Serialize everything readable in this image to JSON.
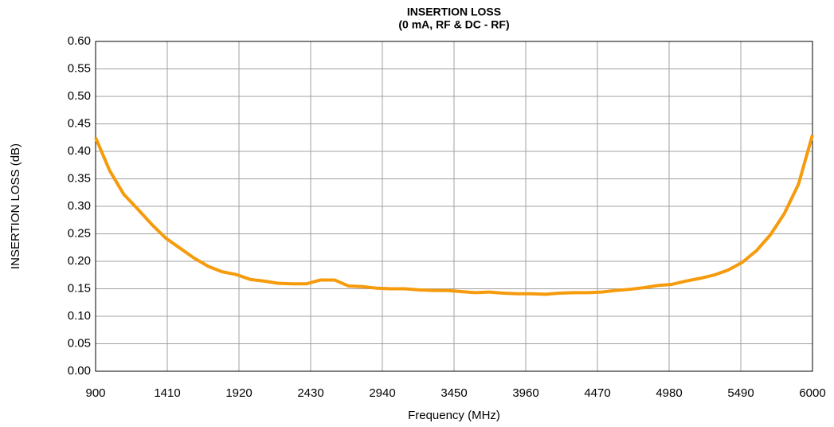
{
  "chart_data": {
    "type": "line",
    "title": "INSERTION LOSS",
    "subtitle": "(0 mA, RF & DC - RF)",
    "x_label": "Frequency (MHz)",
    "y_label": "INSERTION LOSS (dB)",
    "x": [
      900,
      1000,
      1100,
      1200,
      1300,
      1400,
      1500,
      1600,
      1700,
      1800,
      1900,
      2000,
      2100,
      2200,
      2300,
      2400,
      2500,
      2600,
      2700,
      2800,
      2900,
      3000,
      3100,
      3200,
      3300,
      3400,
      3500,
      3600,
      3700,
      3800,
      3900,
      4000,
      4100,
      4200,
      4300,
      4400,
      4500,
      4600,
      4700,
      4800,
      4900,
      5000,
      5100,
      5200,
      5300,
      5400,
      5500,
      5600,
      5700,
      5800,
      5900,
      6000
    ],
    "series": [
      {
        "name": "Insertion Loss",
        "color": "#f59b0c",
        "values": [
          0.425,
          0.365,
          0.322,
          0.295,
          0.267,
          0.242,
          0.224,
          0.206,
          0.191,
          0.181,
          0.176,
          0.167,
          0.164,
          0.16,
          0.159,
          0.159,
          0.166,
          0.166,
          0.155,
          0.154,
          0.151,
          0.15,
          0.15,
          0.148,
          0.147,
          0.147,
          0.145,
          0.143,
          0.144,
          0.142,
          0.141,
          0.141,
          0.14,
          0.142,
          0.143,
          0.143,
          0.144,
          0.147,
          0.149,
          0.152,
          0.156,
          0.158,
          0.164,
          0.169,
          0.175,
          0.184,
          0.198,
          0.219,
          0.248,
          0.287,
          0.34,
          0.43
        ]
      }
    ],
    "xlim": [
      900,
      6000
    ],
    "xticks": [
      900,
      1410,
      1920,
      2430,
      2940,
      3450,
      3960,
      4470,
      4980,
      5490,
      6000
    ],
    "ylim": [
      0,
      0.6
    ],
    "yticks": [
      {
        "value": 0,
        "label": "0.00"
      },
      {
        "value": 0.05,
        "label": "0.05"
      },
      {
        "value": 0.1,
        "label": "0.10"
      },
      {
        "value": 0.15,
        "label": "0.15"
      },
      {
        "value": 0.2,
        "label": "0.20"
      },
      {
        "value": 0.25,
        "label": "0.25"
      },
      {
        "value": 0.3,
        "label": "0.30"
      },
      {
        "value": 0.35,
        "label": "0.35"
      },
      {
        "value": 0.4,
        "label": "0.40"
      },
      {
        "value": 0.45,
        "label": "0.45"
      },
      {
        "value": 0.5,
        "label": "0.50"
      },
      {
        "value": 0.55,
        "label": "0.55"
      },
      {
        "value": 0.6,
        "label": "0.60"
      }
    ],
    "grid": true
  }
}
